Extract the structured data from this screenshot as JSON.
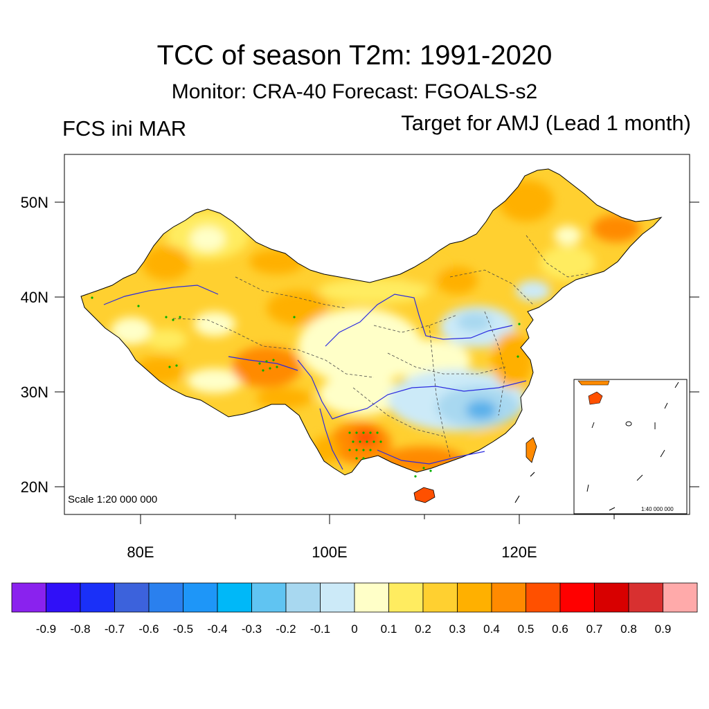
{
  "title": "TCC of season T2m: 1991-2020",
  "subtitle": "Monitor: CRA-40   Forecast: FGOALS-s2",
  "left_label": "FCS ini MAR",
  "right_label": "Target for AMJ (Lead 1 month)",
  "scale_main": "Scale 1:20 000 000",
  "scale_inset": "1:40 000 000",
  "colors": {
    "pos_low": "#ffffc8",
    "pos_mid": "#ffd030",
    "pos_high": "#ff8a00",
    "neg": "#a8d8f0",
    "neg_strong": "#5ab0ea",
    "red": "#ff4000",
    "significance_dots": "#00b000"
  },
  "chart_data": {
    "type": "heatmap",
    "title": "TCC of season T2m: 1991-2020",
    "x_axis": {
      "range": [
        72,
        138
      ],
      "ticks": [
        {
          "value": 80,
          "label": "80E"
        },
        {
          "value": 100,
          "label": "100E"
        },
        {
          "value": 120,
          "label": "120E"
        }
      ]
    },
    "y_axis": {
      "range": [
        17,
        55
      ],
      "ticks": [
        {
          "value": 50,
          "label": "50N"
        },
        {
          "value": 40,
          "label": "40N"
        },
        {
          "value": 30,
          "label": "30N"
        },
        {
          "value": 20,
          "label": "20N"
        }
      ]
    },
    "colorbar": {
      "labels": [
        "-0.9",
        "-0.8",
        "-0.7",
        "-0.6",
        "-0.5",
        "-0.4",
        "-0.3",
        "-0.2",
        "-0.1",
        "0",
        "0.1",
        "0.2",
        "0.3",
        "0.4",
        "0.5",
        "0.6",
        "0.7",
        "0.8",
        "0.9"
      ],
      "colors": [
        "#8a22ee",
        "#3010f8",
        "#1a30f8",
        "#3c62dc",
        "#2a80ee",
        "#1e96f8",
        "#00b8f8",
        "#60c4f2",
        "#a8d8f0",
        "#cceaf8",
        "#ffffc8",
        "#ffec60",
        "#ffd030",
        "#ffb000",
        "#ff8a00",
        "#ff5000",
        "#ff0000",
        "#d80000",
        "#d83030",
        "#ffaaaa"
      ]
    },
    "description_values": {
      "dominant_range": "0.2 to 0.4",
      "max_region_value": "0.6",
      "min_region_value": "-0.4"
    }
  }
}
